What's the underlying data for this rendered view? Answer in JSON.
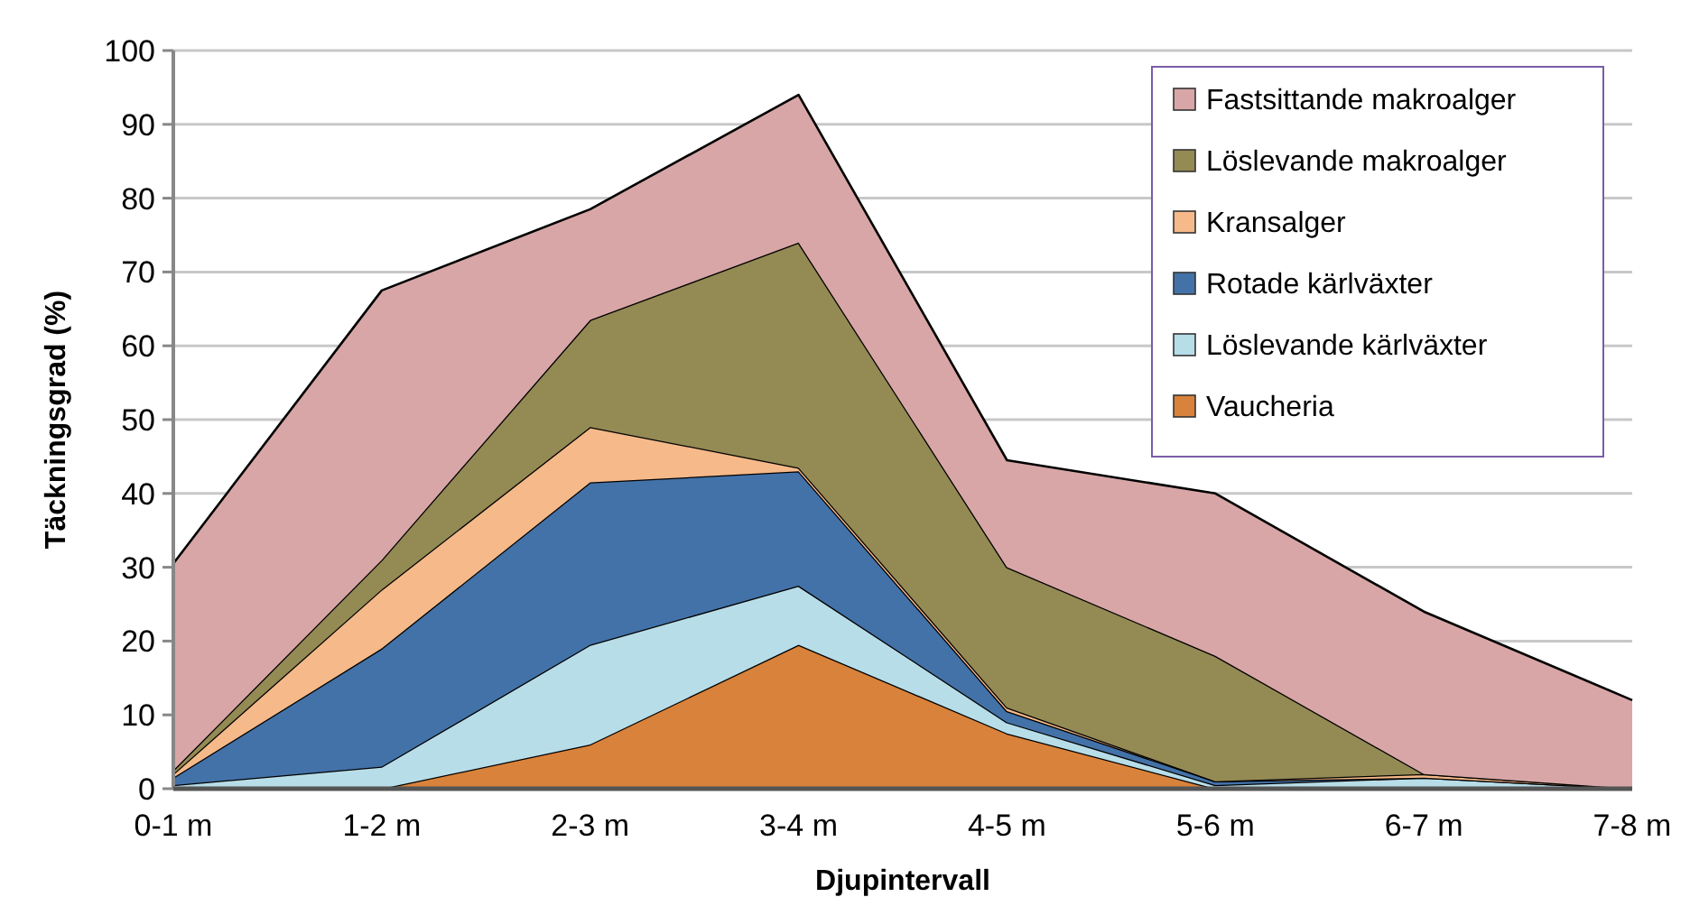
{
  "chart_data": {
    "type": "area",
    "stacked": true,
    "xlabel": "Djupintervall",
    "ylabel": "Täckningsgrad (%)",
    "categories": [
      "0-1 m",
      "1-2 m",
      "2-3 m",
      "3-4 m",
      "4-5 m",
      "5-6 m",
      "6-7 m",
      "7-8 m"
    ],
    "ylim": [
      0,
      100
    ],
    "yticks": [
      0,
      10,
      20,
      30,
      40,
      50,
      60,
      70,
      80,
      90,
      100
    ],
    "grid": "y",
    "legend": "top right",
    "series": [
      {
        "name": "Vaucheria",
        "color": "#d9823b",
        "values": [
          0,
          0,
          6,
          19.5,
          7.5,
          0,
          0,
          0
        ]
      },
      {
        "name": "Löslevande kärlväxter",
        "color": "#b7dde8",
        "values": [
          0.5,
          3,
          13.5,
          8,
          1.5,
          0.5,
          1.5,
          0
        ]
      },
      {
        "name": "Rotade kärlväxter",
        "color": "#4372a8",
        "values": [
          1,
          16,
          22,
          15.5,
          1.5,
          0.5,
          0,
          0
        ]
      },
      {
        "name": "Kransalger",
        "color": "#f5b98a",
        "values": [
          0.5,
          8,
          7.5,
          0.5,
          0.5,
          0,
          0.5,
          0
        ]
      },
      {
        "name": "Löslevande makroalger",
        "color": "#948a54",
        "values": [
          0.5,
          4,
          14.5,
          30.5,
          19,
          17,
          0,
          0
        ]
      },
      {
        "name": "Fastsittande makroalger",
        "color": "#d8a6a6",
        "values": [
          28,
          36.5,
          15,
          20,
          14.5,
          22,
          22,
          12
        ]
      }
    ]
  }
}
